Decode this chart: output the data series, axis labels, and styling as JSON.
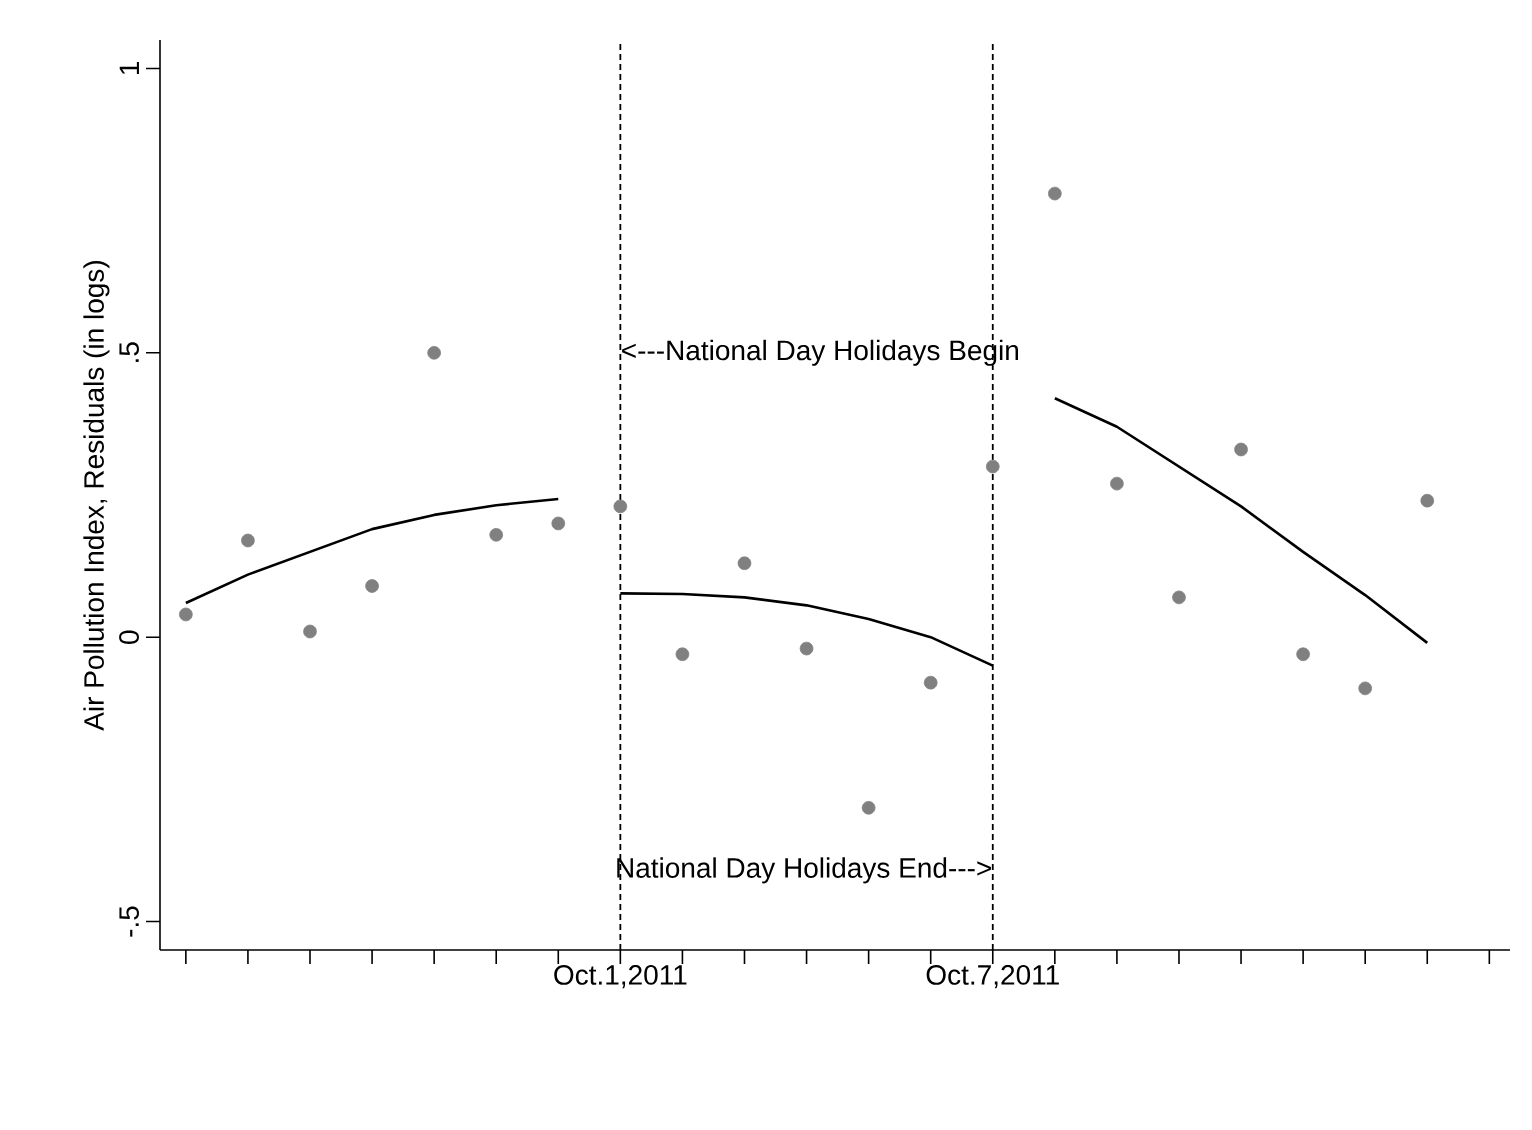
{
  "chart_data": {
    "type": "scatter",
    "ylabel": "Air Pollution Index, Residuals (in logs)",
    "marker": "circle",
    "annotations": [
      {
        "text": "<---National Day Holidays Begin",
        "x": "2011-10-01",
        "y": 0.5
      },
      {
        "text": "National Day Holidays End--->",
        "x": "2011-10-07",
        "y": -0.41
      }
    ],
    "xlim": [
      "2011-09-23T14:00",
      "2011-10-15T08:00"
    ],
    "ylim": [
      -0.55,
      1.05
    ],
    "xticks": [
      {
        "value": "2011-09-24",
        "label": null
      },
      {
        "value": "2011-09-25",
        "label": null
      },
      {
        "value": "2011-09-26",
        "label": null
      },
      {
        "value": "2011-09-27",
        "label": null
      },
      {
        "value": "2011-09-28",
        "label": null
      },
      {
        "value": "2011-09-29",
        "label": null
      },
      {
        "value": "2011-09-30",
        "label": null
      },
      {
        "value": "2011-10-01",
        "label": "Oct.1,2011"
      },
      {
        "value": "2011-10-02",
        "label": null
      },
      {
        "value": "2011-10-03",
        "label": null
      },
      {
        "value": "2011-10-04",
        "label": null
      },
      {
        "value": "2011-10-05",
        "label": null
      },
      {
        "value": "2011-10-06",
        "label": null
      },
      {
        "value": "2011-10-07",
        "label": "Oct.7,2011"
      },
      {
        "value": "2011-10-08",
        "label": null
      },
      {
        "value": "2011-10-09",
        "label": null
      },
      {
        "value": "2011-10-10",
        "label": null
      },
      {
        "value": "2011-10-11",
        "label": null
      },
      {
        "value": "2011-10-12",
        "label": null
      },
      {
        "value": "2011-10-13",
        "label": null
      },
      {
        "value": "2011-10-14",
        "label": null
      },
      {
        "value": "2011-10-15",
        "label": null
      }
    ],
    "yticks": [
      {
        "value": -0.5,
        "label": "-.5"
      },
      0,
      {
        "value": 0.5,
        "label": ".5"
      },
      1
    ],
    "ref_lines": [
      {
        "axis": "x",
        "value": "2011-10-01",
        "color": "#000000",
        "line_style": "dashed"
      },
      {
        "axis": "x",
        "value": "2011-10-07",
        "color": "#000000",
        "line_style": "dashed"
      }
    ],
    "series": [
      {
        "type": "scatter",
        "color": "#808080",
        "x": [
          "2011-09-24",
          "2011-09-25",
          "2011-09-26",
          "2011-09-27",
          "2011-09-28",
          "2011-09-29",
          "2011-09-30",
          "2011-10-01",
          "2011-10-02",
          "2011-10-03",
          "2011-10-04",
          "2011-10-05",
          "2011-10-06",
          "2011-10-07",
          "2011-10-08",
          "2011-10-09",
          "2011-10-10",
          "2011-10-11",
          "2011-10-12",
          "2011-10-13",
          "2011-10-14"
        ],
        "values": [
          0.04,
          0.17,
          0.01,
          0.09,
          0.5,
          0.18,
          0.2,
          0.23,
          -0.03,
          0.13,
          -0.02,
          -0.3,
          -0.08,
          0.3,
          0.78,
          0.27,
          0.07,
          0.33,
          -0.03,
          -0.09,
          0.24
        ]
      },
      {
        "type": "line",
        "color": "#000000",
        "marker": "none",
        "line_style": "solid",
        "x": [
          "2011-09-24",
          "2011-09-25",
          "2011-09-26",
          "2011-09-27",
          "2011-09-28",
          "2011-09-29",
          "2011-09-30"
        ],
        "values": [
          0.06,
          0.11,
          0.15,
          0.19,
          0.215,
          0.232,
          0.243
        ]
      },
      {
        "type": "line",
        "color": "#000000",
        "marker": "none",
        "line_style": "solid",
        "x": [
          "2011-10-01",
          "2011-10-02",
          "2011-10-03",
          "2011-10-04",
          "2011-10-05",
          "2011-10-06",
          "2011-10-07"
        ],
        "values": [
          0.077,
          0.076,
          0.07,
          0.056,
          0.032,
          0.0,
          -0.05
        ]
      },
      {
        "type": "line",
        "color": "#000000",
        "marker": "none",
        "line_style": "solid",
        "x": [
          "2011-10-08",
          "2011-10-09",
          "2011-10-10",
          "2011-10-11",
          "2011-10-12",
          "2011-10-13",
          "2011-10-14"
        ],
        "values": [
          0.42,
          0.37,
          0.3,
          0.23,
          0.15,
          0.074,
          -0.01
        ]
      }
    ]
  }
}
